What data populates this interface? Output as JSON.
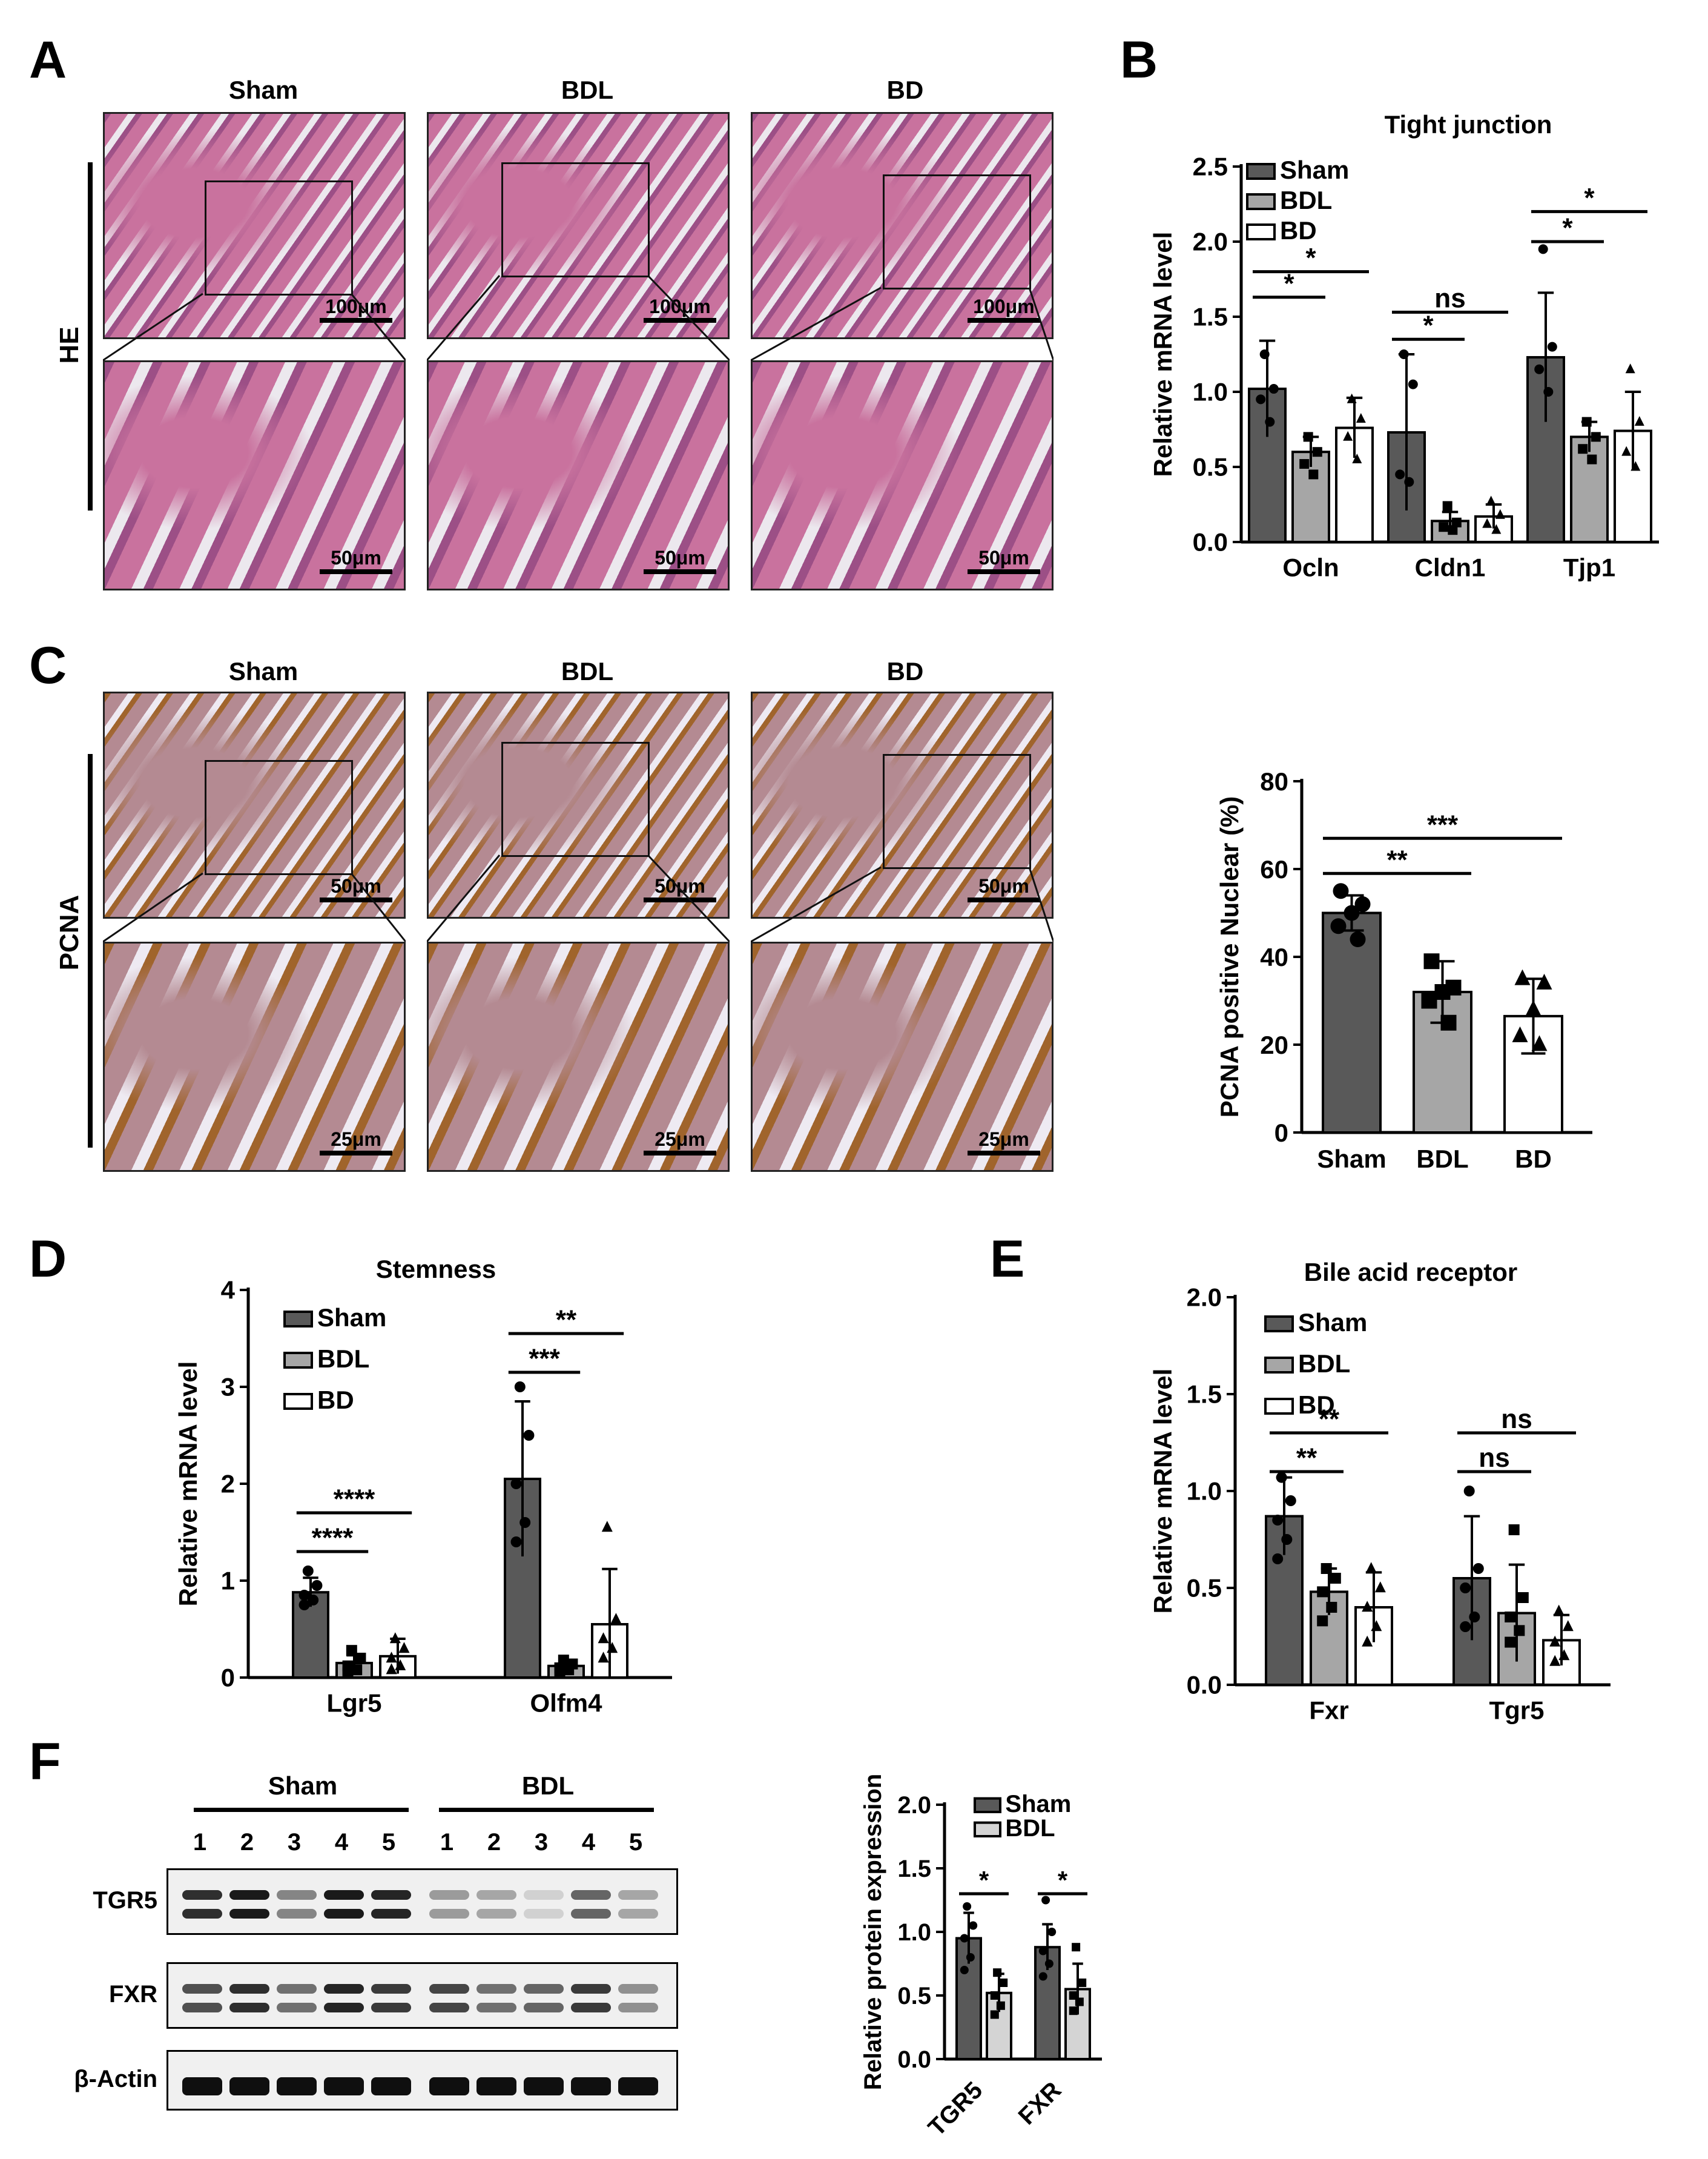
{
  "panels": {
    "A": "A",
    "B": "B",
    "C": "C",
    "D": "D",
    "E": "E",
    "F": "F"
  },
  "conditions": [
    "Sham",
    "BDL",
    "BD"
  ],
  "he": {
    "side_label": "HE",
    "scale_top": "100μm",
    "scale_bottom": "50μm",
    "colors": {
      "tissue": "#c9729e",
      "tissue_dark": "#9c4f86",
      "background": "#ece8ee"
    }
  },
  "pcna": {
    "side_label": "PCNA",
    "scale_top": "50μm",
    "scale_bottom": "25μm",
    "colors": {
      "tissue": "#b48a92",
      "stain": "#a0642c",
      "background": "#eeeaf2",
      "nuclei": "#6d6aa6"
    }
  },
  "legend_labels": [
    "Sham",
    "BDL",
    "BD"
  ],
  "colors": {
    "sham": "#595959",
    "bdl": "#a6a6a6",
    "bd": "#ffffff",
    "f_bdl": "#d4d4d4"
  },
  "chart_data": [
    {
      "panel": "B",
      "type": "bar",
      "title": "Tight junction",
      "ylabel": "Relative mRNA level",
      "ylim": [
        0,
        2.5
      ],
      "yticks": [
        "0.0",
        "0.5",
        "1.0",
        "1.5",
        "2.0",
        "2.5"
      ],
      "categories": [
        "Ocln",
        "Cldn1",
        "Tjp1"
      ],
      "series": [
        {
          "name": "Sham",
          "values": [
            1.02,
            0.73,
            1.23
          ],
          "err": [
            0.32,
            0.52,
            0.43
          ],
          "points": [
            [
              1.25,
              1.02,
              0.95,
              0.8
            ],
            [
              1.25,
              1.05,
              0.45,
              0.4
            ],
            [
              1.95,
              1.3,
              1.15,
              1.0
            ]
          ]
        },
        {
          "name": "BDL",
          "values": [
            0.6,
            0.14,
            0.7
          ],
          "err": [
            0.1,
            0.06,
            0.1
          ],
          "points": [
            [
              0.7,
              0.6,
              0.52,
              0.45
            ],
            [
              0.24,
              0.13,
              0.1,
              0.08
            ],
            [
              0.8,
              0.7,
              0.62,
              0.55
            ]
          ]
        },
        {
          "name": "BD",
          "values": [
            0.76,
            0.17,
            0.74
          ],
          "err": [
            0.2,
            0.08,
            0.26
          ],
          "points": [
            [
              0.95,
              0.82,
              0.7,
              0.55
            ],
            [
              0.27,
              0.18,
              0.12,
              0.08
            ],
            [
              1.15,
              0.8,
              0.6,
              0.5
            ]
          ]
        }
      ],
      "legend": "top-left",
      "sig": [
        {
          "cat": 0,
          "from": 0,
          "to": 1,
          "text": "*",
          "y": 1.63
        },
        {
          "cat": 0,
          "from": 0,
          "to": 2,
          "text": "*",
          "y": 1.8
        },
        {
          "cat": 1,
          "from": 0,
          "to": 1,
          "text": "*",
          "y": 1.35
        },
        {
          "cat": 1,
          "from": 0,
          "to": 2,
          "text": "ns",
          "y": 1.53
        },
        {
          "cat": 2,
          "from": 0,
          "to": 1,
          "text": "*",
          "y": 2.0
        },
        {
          "cat": 2,
          "from": 0,
          "to": 2,
          "text": "*",
          "y": 2.2
        }
      ]
    },
    {
      "panel": "C",
      "type": "bar",
      "title": "",
      "ylabel": "PCNA positive Nuclear  (%)",
      "ylim": [
        0,
        80
      ],
      "yticks": [
        "0",
        "20",
        "40",
        "60",
        "80"
      ],
      "categories": [
        "Sham",
        "BDL",
        "BD"
      ],
      "values": [
        50,
        32,
        26.5
      ],
      "err": [
        4,
        7,
        8.5
      ],
      "points": [
        [
          55,
          52,
          50,
          47,
          44
        ],
        [
          39,
          33,
          32,
          30,
          25
        ],
        [
          35,
          34,
          28,
          22,
          20
        ]
      ],
      "markers": [
        "circle",
        "square",
        "triangle"
      ],
      "sig": [
        {
          "from": 0,
          "to": 1,
          "text": "**",
          "y": 59
        },
        {
          "from": 0,
          "to": 2,
          "text": "***",
          "y": 67
        }
      ]
    },
    {
      "panel": "D",
      "type": "bar",
      "title": "Stemness",
      "ylabel": "Relative mRNA level",
      "ylim": [
        0,
        4
      ],
      "yticks": [
        "0",
        "1",
        "2",
        "3",
        "4"
      ],
      "categories": [
        "Lgr5",
        "Olfm4"
      ],
      "series": [
        {
          "name": "Sham",
          "values": [
            0.88,
            2.05
          ],
          "err": [
            0.15,
            0.8
          ],
          "points": [
            [
              1.1,
              0.95,
              0.85,
              0.8,
              0.75
            ],
            [
              3.0,
              2.5,
              2.0,
              1.6,
              1.4
            ]
          ]
        },
        {
          "name": "BDL",
          "values": [
            0.15,
            0.12
          ],
          "err": [
            0.08,
            0.06
          ],
          "points": [
            [
              0.28,
              0.2,
              0.12,
              0.08,
              0.05
            ],
            [
              0.18,
              0.14,
              0.1,
              0.08,
              0.06
            ]
          ]
        },
        {
          "name": "BD",
          "values": [
            0.22,
            0.55
          ],
          "err": [
            0.18,
            0.57
          ],
          "points": [
            [
              0.4,
              0.3,
              0.2,
              0.12,
              0.08
            ],
            [
              1.55,
              0.6,
              0.4,
              0.3,
              0.2
            ]
          ]
        }
      ],
      "legend": "top-left",
      "sig": [
        {
          "cat": 0,
          "from": 0,
          "to": 1,
          "text": "****",
          "y": 1.3
        },
        {
          "cat": 0,
          "from": 0,
          "to": 2,
          "text": "****",
          "y": 1.7
        },
        {
          "cat": 1,
          "from": 0,
          "to": 1,
          "text": "***",
          "y": 3.15
        },
        {
          "cat": 1,
          "from": 0,
          "to": 2,
          "text": "**",
          "y": 3.55
        }
      ]
    },
    {
      "panel": "E",
      "type": "bar",
      "title": "Bile acid receptor",
      "ylabel": "Relative mRNA level",
      "ylim": [
        0,
        2.0
      ],
      "yticks": [
        "0.0",
        "0.5",
        "1.0",
        "1.5",
        "2.0"
      ],
      "categories": [
        "Fxr",
        "Tgr5"
      ],
      "series": [
        {
          "name": "Sham",
          "values": [
            0.87,
            0.55
          ],
          "err": [
            0.2,
            0.32
          ],
          "points": [
            [
              1.07,
              0.95,
              0.85,
              0.75,
              0.65
            ],
            [
              1.0,
              0.6,
              0.5,
              0.35,
              0.3
            ]
          ]
        },
        {
          "name": "BDL",
          "values": [
            0.48,
            0.37
          ],
          "err": [
            0.12,
            0.25
          ],
          "points": [
            [
              0.6,
              0.55,
              0.48,
              0.4,
              0.33
            ],
            [
              0.8,
              0.45,
              0.35,
              0.28,
              0.22
            ]
          ]
        },
        {
          "name": "BD",
          "values": [
            0.4,
            0.23
          ],
          "err": [
            0.18,
            0.13
          ],
          "points": [
            [
              0.6,
              0.5,
              0.4,
              0.3,
              0.22
            ],
            [
              0.38,
              0.3,
              0.22,
              0.15,
              0.12
            ]
          ]
        }
      ],
      "legend": "top-left",
      "sig": [
        {
          "cat": 0,
          "from": 0,
          "to": 1,
          "text": "**",
          "y": 1.1
        },
        {
          "cat": 0,
          "from": 0,
          "to": 2,
          "text": "**",
          "y": 1.3
        },
        {
          "cat": 1,
          "from": 0,
          "to": 1,
          "text": "ns",
          "y": 1.1
        },
        {
          "cat": 1,
          "from": 0,
          "to": 2,
          "text": "ns",
          "y": 1.3
        }
      ]
    },
    {
      "panel": "F",
      "type": "bar",
      "title": "",
      "ylabel": "Relative protein expression",
      "ylim": [
        0,
        2.0
      ],
      "yticks": [
        "0.0",
        "0.5",
        "1.0",
        "1.5",
        "2.0"
      ],
      "categories": [
        "TGR5",
        "FXR"
      ],
      "series": [
        {
          "name": "Sham",
          "values": [
            0.95,
            0.88
          ],
          "err": [
            0.2,
            0.18
          ],
          "points": [
            [
              1.2,
              1.05,
              0.95,
              0.8,
              0.7
            ],
            [
              1.25,
              1.0,
              0.85,
              0.75,
              0.65
            ]
          ]
        },
        {
          "name": "BDL",
          "values": [
            0.52,
            0.55
          ],
          "err": [
            0.15,
            0.2
          ],
          "points": [
            [
              0.68,
              0.6,
              0.5,
              0.42,
              0.35
            ],
            [
              0.88,
              0.6,
              0.5,
              0.45,
              0.38
            ]
          ]
        }
      ],
      "legend": "top-left",
      "sig": [
        {
          "cat": 0,
          "from": 0,
          "to": 1,
          "text": "*",
          "y": 1.3
        },
        {
          "cat": 1,
          "from": 0,
          "to": 1,
          "text": "*",
          "y": 1.3
        }
      ]
    }
  ],
  "western": {
    "groups": [
      "Sham",
      "BDL"
    ],
    "lanes": [
      "1",
      "2",
      "3",
      "4",
      "5",
      "1",
      "2",
      "3",
      "4",
      "5"
    ],
    "rows": [
      {
        "label": "TGR5",
        "intensity": [
          0.85,
          0.95,
          0.45,
          0.95,
          0.9,
          0.35,
          0.3,
          0.1,
          0.6,
          0.3
        ],
        "double": true
      },
      {
        "label": "FXR",
        "intensity": [
          0.7,
          0.85,
          0.55,
          0.9,
          0.8,
          0.75,
          0.55,
          0.6,
          0.8,
          0.4
        ],
        "double": true
      },
      {
        "label": "β-Actin",
        "intensity": [
          1,
          1,
          1,
          1,
          1,
          1,
          1,
          1,
          1,
          1
        ],
        "double": false
      }
    ]
  }
}
